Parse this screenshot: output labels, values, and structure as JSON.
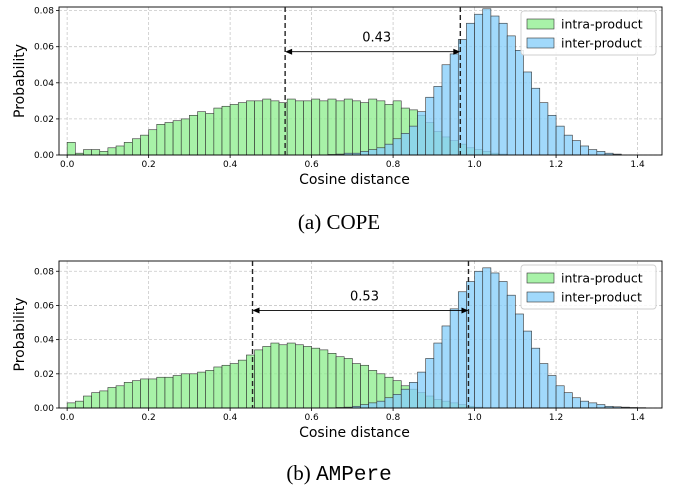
{
  "figure": {
    "caption_a_prefix": "(a)",
    "caption_a_name": "COPE",
    "caption_b_prefix": "(b)",
    "caption_b_name": "AMPere"
  },
  "colors": {
    "intra": "#90ee90",
    "inter": "#87cefa",
    "edge": "#333333",
    "grid": "#c8c8c8",
    "vline": "#222222"
  },
  "chart_data": [
    {
      "type": "bar",
      "panel": "COPE",
      "xlabel": "Cosine distance",
      "ylabel": "Probability",
      "xlim": [
        -0.02,
        1.46
      ],
      "ylim": [
        0,
        0.082
      ],
      "xticks": [
        "0.0",
        "0.2",
        "0.4",
        "0.6",
        "0.8",
        "1.0",
        "1.2",
        "1.4"
      ],
      "yticks": [
        "0.00",
        "0.02",
        "0.04",
        "0.06",
        "0.08"
      ],
      "grid": true,
      "legend_position": "top-right",
      "bin_width": 0.02,
      "series": [
        {
          "name": "intra-product",
          "x_start": 0.0,
          "values": [
            0.007,
            0.001,
            0.003,
            0.003,
            0.002,
            0.004,
            0.005,
            0.007,
            0.009,
            0.011,
            0.014,
            0.017,
            0.018,
            0.019,
            0.02,
            0.022,
            0.024,
            0.023,
            0.026,
            0.027,
            0.028,
            0.029,
            0.03,
            0.03,
            0.031,
            0.03,
            0.029,
            0.031,
            0.03,
            0.03,
            0.031,
            0.03,
            0.031,
            0.03,
            0.031,
            0.03,
            0.029,
            0.031,
            0.03,
            0.028,
            0.03,
            0.026,
            0.025,
            0.022,
            0.018,
            0.013,
            0.01,
            0.008,
            0.006,
            0.004,
            0.003,
            0.002,
            0.001,
            0.0005
          ]
        },
        {
          "name": "inter-product",
          "x_start": 0.64,
          "values": [
            0.0003,
            0.0005,
            0.001,
            0.001,
            0.002,
            0.003,
            0.004,
            0.006,
            0.009,
            0.012,
            0.016,
            0.024,
            0.032,
            0.038,
            0.05,
            0.056,
            0.064,
            0.073,
            0.078,
            0.081,
            0.077,
            0.073,
            0.066,
            0.058,
            0.046,
            0.037,
            0.029,
            0.022,
            0.016,
            0.011,
            0.008,
            0.005,
            0.003,
            0.002,
            0.001,
            0.0005
          ]
        }
      ],
      "reference_lines": {
        "x1": 0.535,
        "x2": 0.965,
        "arrow_y": 0.06,
        "label": "0.43"
      }
    },
    {
      "type": "bar",
      "panel": "AMPere",
      "xlabel": "Cosine distance",
      "ylabel": "Probability",
      "xlim": [
        -0.02,
        1.46
      ],
      "ylim": [
        0,
        0.086
      ],
      "xticks": [
        "0.0",
        "0.2",
        "0.4",
        "0.6",
        "0.8",
        "1.0",
        "1.2",
        "1.4"
      ],
      "yticks": [
        "0.00",
        "0.02",
        "0.04",
        "0.06",
        "0.08"
      ],
      "grid": true,
      "legend_position": "top-right",
      "bin_width": 0.02,
      "series": [
        {
          "name": "intra-product",
          "x_start": 0.0,
          "values": [
            0.003,
            0.004,
            0.007,
            0.009,
            0.01,
            0.012,
            0.013,
            0.015,
            0.016,
            0.017,
            0.017,
            0.018,
            0.018,
            0.019,
            0.02,
            0.02,
            0.021,
            0.022,
            0.024,
            0.025,
            0.026,
            0.028,
            0.031,
            0.034,
            0.036,
            0.038,
            0.037,
            0.038,
            0.037,
            0.036,
            0.035,
            0.034,
            0.032,
            0.03,
            0.029,
            0.026,
            0.025,
            0.022,
            0.02,
            0.018,
            0.016,
            0.013,
            0.011,
            0.009,
            0.007,
            0.005,
            0.004,
            0.003,
            0.002,
            0.001,
            0.0005
          ]
        },
        {
          "name": "inter-product",
          "x_start": 0.66,
          "values": [
            0.0003,
            0.0005,
            0.001,
            0.002,
            0.003,
            0.004,
            0.006,
            0.008,
            0.011,
            0.015,
            0.021,
            0.029,
            0.038,
            0.048,
            0.058,
            0.068,
            0.074,
            0.08,
            0.082,
            0.079,
            0.074,
            0.066,
            0.055,
            0.045,
            0.035,
            0.026,
            0.019,
            0.013,
            0.009,
            0.006,
            0.004,
            0.003,
            0.002,
            0.001,
            0.0007,
            0.0005,
            0.0003,
            0.0002
          ]
        }
      ],
      "reference_lines": {
        "x1": 0.455,
        "x2": 0.985,
        "arrow_y": 0.06,
        "label": "0.53"
      }
    }
  ]
}
